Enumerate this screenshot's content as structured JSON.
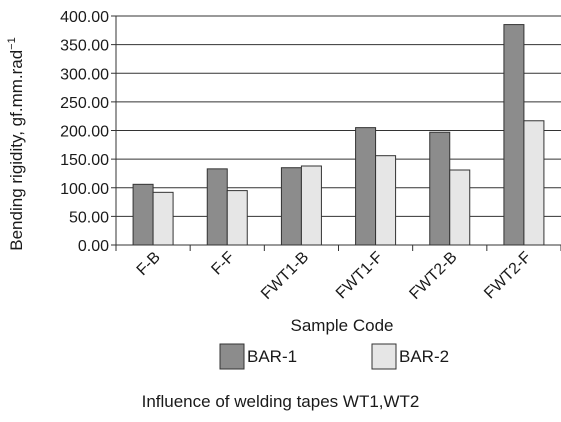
{
  "chart_data": {
    "type": "bar",
    "xlabel": "Sample Code",
    "ylabel": "Bending rigidity, gf.mm.rad",
    "ylabel_superscript": "−1",
    "categories": [
      "F-B",
      "F-F",
      "FWT1-B",
      "FWT1-F",
      "FWT2-B",
      "FWT2-F"
    ],
    "series": [
      {
        "name": "BAR-1",
        "values": [
          106,
          133,
          135,
          205,
          197,
          385
        ],
        "color": "#8c8c8c"
      },
      {
        "name": "BAR-2",
        "values": [
          92,
          95,
          138,
          156,
          131,
          217
        ],
        "color": "#e6e6e6"
      }
    ],
    "yticks": [
      "0.00",
      "50.00",
      "100.00",
      "150.00",
      "200.00",
      "250.00",
      "300.00",
      "350.00",
      "400.00"
    ],
    "ylim": [
      0,
      400
    ],
    "grid": true,
    "legend_position": "bottom"
  },
  "caption": "Influence of welding tapes WT1,WT2"
}
